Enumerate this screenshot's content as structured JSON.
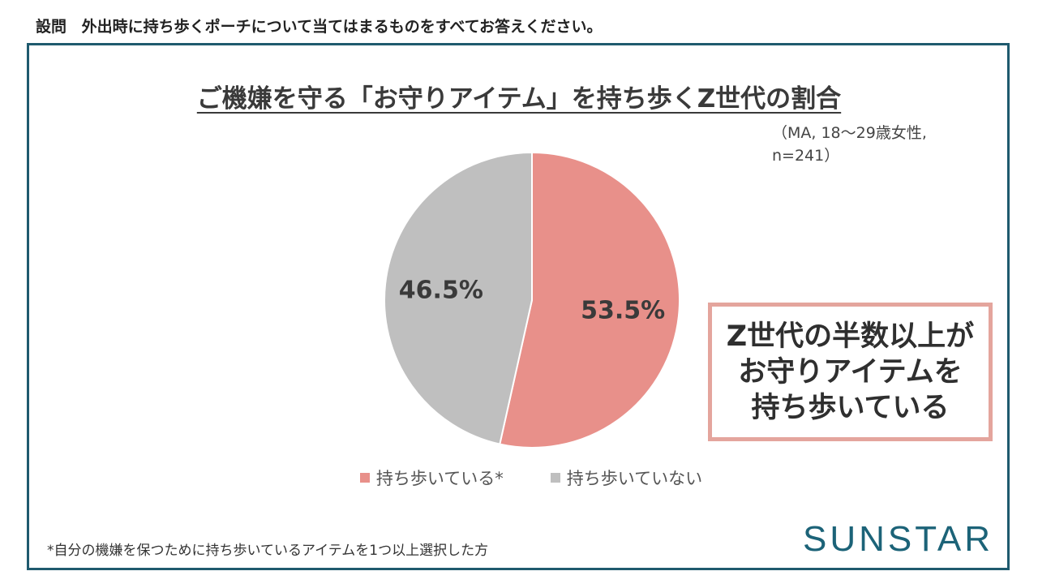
{
  "question": {
    "tag": "設問",
    "text": "外出時に持ち歩くポーチについて当てはまるものをすべてお答えください。"
  },
  "colors": {
    "frame": "#1f5a6e",
    "carry": "#e8908a",
    "not_carry": "#bfbfbf",
    "callout_border": "#e4a59d",
    "logo": "#1c6378"
  },
  "chart_data": {
    "type": "pie",
    "title": "ご機嫌を守る「お守りアイテム」を持ち歩くZ世代の割合",
    "sample_note_line1": "（MA, 18～29歳女性,",
    "sample_note_line2": "n=241）",
    "slices": [
      {
        "name": "持ち歩いている*",
        "value": 53.5,
        "label": "53.5%",
        "color": "#e8908a"
      },
      {
        "name": "持ち歩いていない",
        "value": 46.5,
        "label": "46.5%",
        "color": "#bfbfbf"
      }
    ],
    "legend_position": "bottom"
  },
  "callout": {
    "line1": "Z世代の半数以上が",
    "line2": "お守りアイテムを",
    "line3": "持ち歩いている"
  },
  "footnote": "*自分の機嫌を保つために持ち歩いているアイテムを1つ以上選択した方",
  "logo": "SUNSTAR"
}
